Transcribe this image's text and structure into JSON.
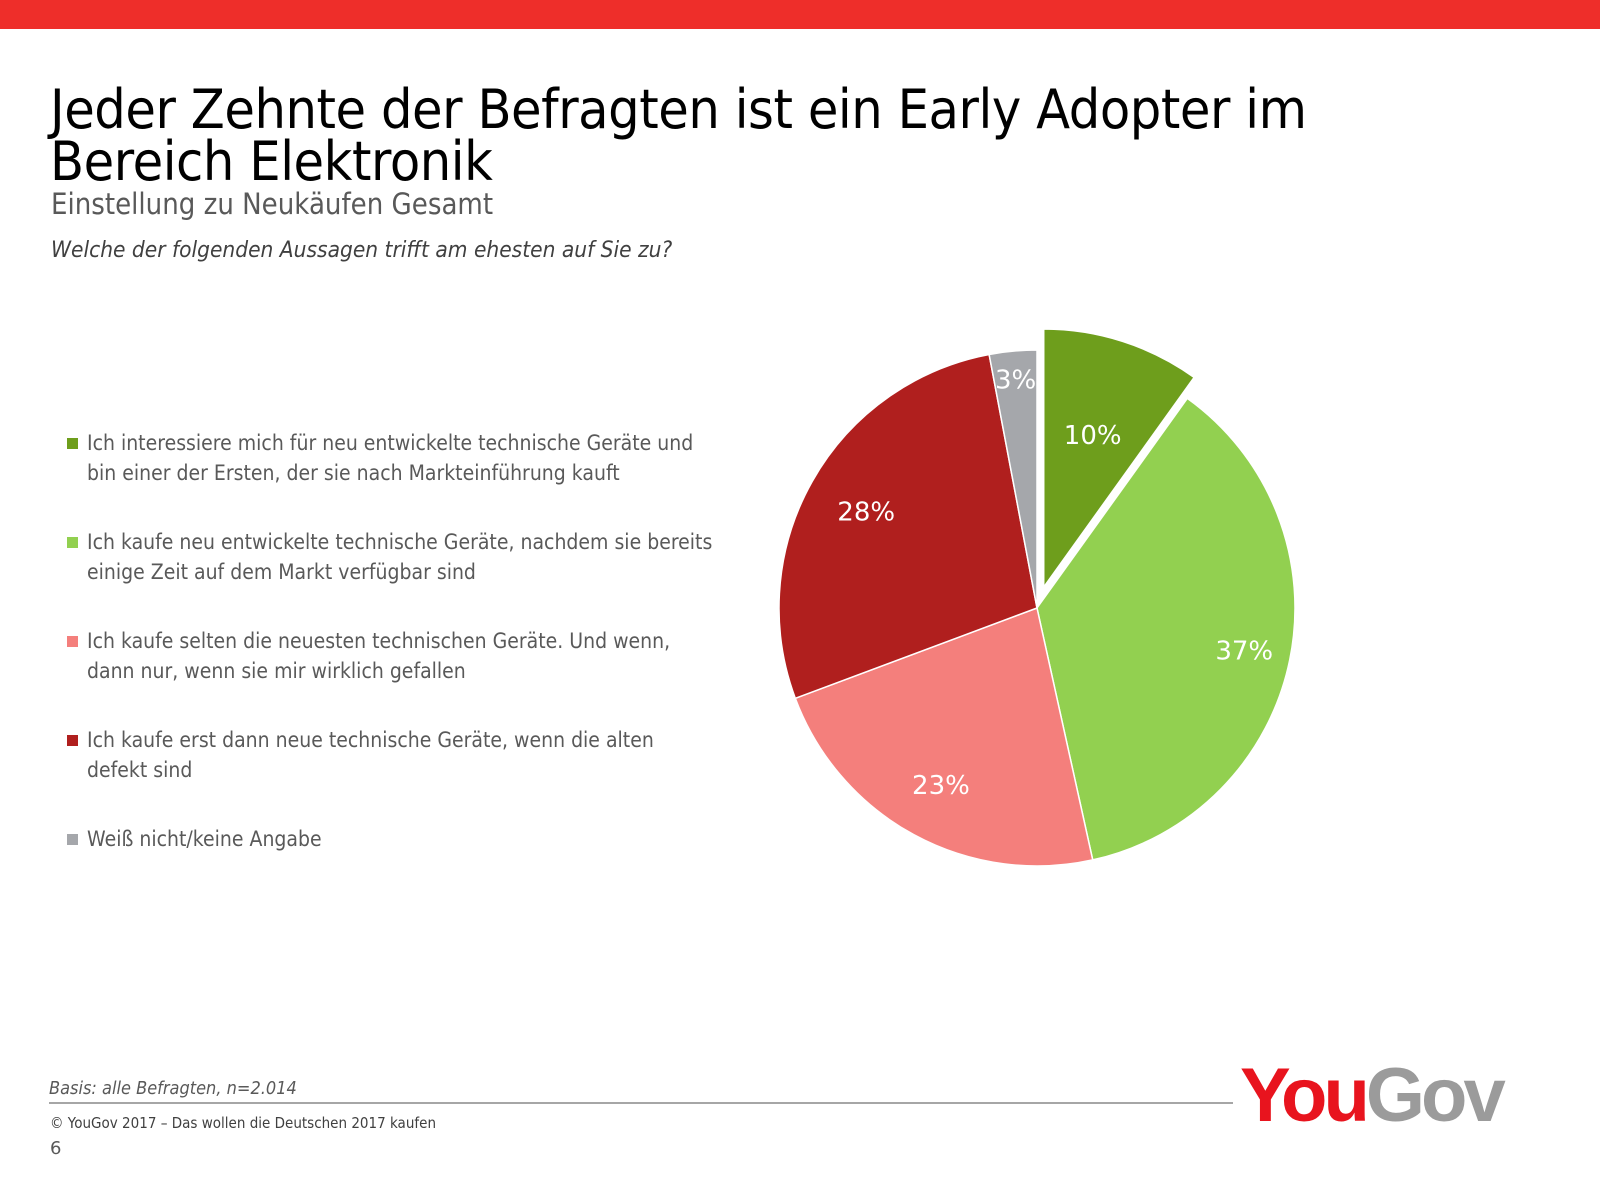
{
  "header": {
    "title": "Jeder Zehnte der Befragten ist ein Early Adopter im Bereich Elektronik",
    "subtitle": "Einstellung zu Neukäufen Gesamt",
    "question": "Welche der folgenden Aussagen trifft am ehesten auf Sie zu?"
  },
  "chart_data": {
    "type": "pie",
    "title": "Einstellung zu Neukäufen Gesamt",
    "legend_position": "left",
    "start_angle_deg": 0,
    "direction": "clockwise",
    "exploded": [
      "early"
    ],
    "slices": [
      {
        "key": "early",
        "label": "Ich interessiere mich für neu entwickelte technische Geräte und bin einer der Ersten, der sie nach Markteinführung kauft",
        "value": 10,
        "display": "10%",
        "color": "#6e9e1c"
      },
      {
        "key": "after",
        "label": "Ich kaufe neu entwickelte technische Geräte, nachdem sie bereits einige Zeit auf dem Markt verfügbar sind",
        "value": 37,
        "display": "37%",
        "color": "#92d050"
      },
      {
        "key": "rarely",
        "label": "Ich kaufe selten die neuesten technischen Geräte. Und wenn, dann nur, wenn sie mir wirklich gefallen",
        "value": 23,
        "display": "23%",
        "color": "#f47f7c"
      },
      {
        "key": "defect",
        "label": "Ich kaufe erst dann neue technische Geräte, wenn die alten defekt sind",
        "value": 28,
        "display": "28%",
        "color": "#b01f1e"
      },
      {
        "key": "dontknow",
        "label": "Weiß nicht/keine Angabe",
        "value": 3,
        "display": "3%",
        "color": "#a5a7ab"
      }
    ]
  },
  "footer": {
    "basis": "Basis: alle Befragten, n=2.014",
    "copyright": "© YouGov 2017 – Das wollen die Deutschen 2017 kaufen",
    "page_number": "6",
    "logo_you": "You",
    "logo_gov": "Gov"
  },
  "colors": {
    "topbar": "#ee2e2a",
    "brand_red": "#e8141e",
    "brand_gray": "#9b9b9b"
  }
}
